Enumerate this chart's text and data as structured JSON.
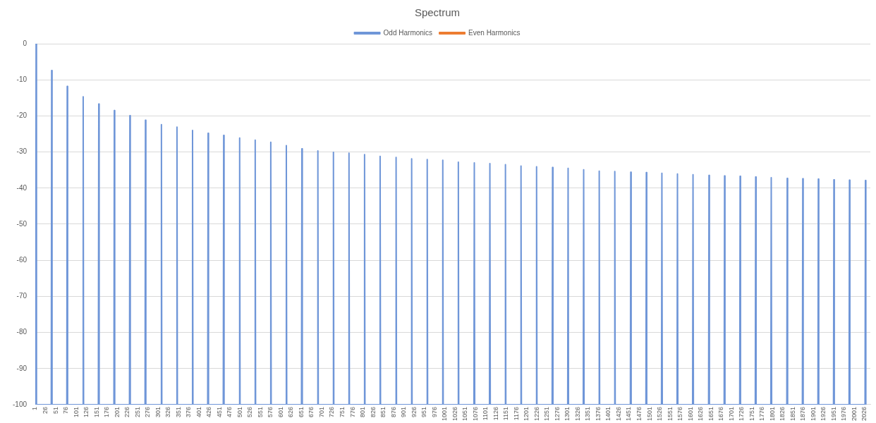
{
  "chart_data": {
    "type": "line",
    "title": "Spectrum",
    "x": [
      2,
      3,
      4,
      40,
      41,
      42,
      78,
      79,
      80,
      117,
      118,
      119,
      155,
      156,
      157,
      193,
      194,
      195,
      231,
      232,
      233,
      269,
      270,
      271,
      308,
      309,
      310,
      346,
      347,
      348,
      384,
      385,
      386,
      422,
      423,
      424,
      460,
      461,
      462,
      499,
      500,
      501,
      537,
      538,
      539,
      575,
      576,
      577,
      613,
      614,
      615,
      651,
      652,
      653,
      690,
      691,
      692,
      728,
      729,
      730,
      766,
      767,
      768,
      804,
      805,
      806,
      842,
      843,
      844,
      881,
      882,
      883,
      919,
      920,
      921,
      957,
      958,
      959,
      995,
      996,
      997,
      1033,
      1034,
      1035,
      1072,
      1073,
      1074,
      1110,
      1111,
      1112,
      1148,
      1149,
      1150,
      1186,
      1187,
      1188,
      1224,
      1225,
      1226,
      1263,
      1264,
      1265,
      1301,
      1302,
      1303,
      1339,
      1340,
      1341,
      1377,
      1378,
      1379,
      1415,
      1416,
      1417,
      1454,
      1455,
      1456,
      1492,
      1493,
      1494,
      1530,
      1531,
      1532,
      1568,
      1569,
      1570,
      1606,
      1607,
      1608,
      1645,
      1646,
      1647,
      1683,
      1684,
      1685,
      1721,
      1722,
      1723,
      1759,
      1760,
      1761,
      1797,
      1798,
      1799,
      1836,
      1837,
      1838,
      1874,
      1875,
      1876,
      1912,
      1913,
      1914,
      1950,
      1951,
      1952,
      1988,
      1989,
      1990,
      2027,
      2028,
      2029
    ],
    "series": [
      {
        "name": "Odd Harmonics",
        "color": "#6f96d8",
        "values": [
          -100,
          0,
          -100,
          -100,
          -7.4,
          -100,
          -100,
          -11.8,
          -100,
          -100,
          -14.7,
          -100,
          -100,
          -16.7,
          -100,
          -100,
          -18.5,
          -100,
          -100,
          -19.9,
          -100,
          -100,
          -21.2,
          -100,
          -100,
          -22.4,
          -100,
          -100,
          -23.1,
          -100,
          -100,
          -24,
          -100,
          -100,
          -24.8,
          -100,
          -100,
          -25.4,
          -100,
          -100,
          -26.1,
          -100,
          -100,
          -26.7,
          -100,
          -100,
          -27.3,
          -100,
          -100,
          -28.2,
          -100,
          -100,
          -29.1,
          -100,
          -100,
          -29.7,
          -100,
          -100,
          -30.1,
          -100,
          -100,
          -30.3,
          -100,
          -100,
          -30.7,
          -100,
          -100,
          -31.2,
          -100,
          -100,
          -31.5,
          -100,
          -100,
          -31.9,
          -100,
          -100,
          -32.1,
          -100,
          -100,
          -32.3,
          -100,
          -100,
          -32.8,
          -100,
          -100,
          -33,
          -100,
          -100,
          -33.2,
          -100,
          -100,
          -33.5,
          -100,
          -100,
          -33.9,
          -100,
          -100,
          -34.1,
          -100,
          -100,
          -34.3,
          -100,
          -100,
          -34.5,
          -100,
          -100,
          -34.9,
          -100,
          -100,
          -35.3,
          -100,
          -100,
          -35.4,
          -100,
          -100,
          -35.6,
          -100,
          -100,
          -35.7,
          -100,
          -100,
          -35.9,
          -100,
          -100,
          -36.1,
          -100,
          -100,
          -36.3,
          -100,
          -100,
          -36.5,
          -100,
          -100,
          -36.6,
          -100,
          -100,
          -36.7,
          -100,
          -100,
          -36.9,
          -100,
          -100,
          -37.1,
          -100,
          -100,
          -37.3,
          -100,
          -100,
          -37.4,
          -100,
          -100,
          -37.5,
          -100,
          -100,
          -37.7,
          -100,
          -100,
          -37.8,
          -100,
          -100,
          -37.9,
          -100
        ]
      },
      {
        "name": "Even Harmonics",
        "color": "#ed7d31",
        "values": [
          null,
          null,
          null,
          null,
          null,
          null,
          null,
          null,
          null,
          null,
          null,
          null,
          null,
          null,
          null,
          null,
          null,
          null,
          null,
          null,
          null,
          null,
          null,
          null,
          null,
          null,
          null,
          null,
          null,
          null,
          null,
          null,
          null,
          null,
          null,
          null,
          null,
          null,
          null,
          null,
          null,
          null,
          null,
          null,
          null,
          null,
          null,
          null,
          null,
          null,
          null,
          null,
          null,
          null,
          null,
          null,
          null,
          null,
          null,
          null,
          null,
          null,
          null,
          null,
          null,
          null,
          null,
          null,
          null,
          null,
          null,
          null,
          null,
          null,
          null,
          null,
          null,
          null,
          null,
          null,
          null,
          null,
          null,
          null,
          null,
          null,
          null,
          null,
          null,
          null,
          null,
          null,
          null,
          null,
          null,
          null,
          null,
          null,
          null,
          null,
          null,
          null,
          null,
          null,
          null,
          null,
          null,
          null,
          null,
          null,
          null,
          null,
          null,
          null,
          null,
          null,
          null,
          null,
          null,
          null,
          null,
          null,
          null,
          null,
          null,
          null,
          null,
          null,
          null,
          null,
          null,
          null,
          null,
          null,
          null,
          null,
          null,
          null,
          null,
          null,
          null,
          null,
          null,
          null,
          null,
          null,
          null,
          null,
          null,
          null,
          null,
          null,
          null,
          null,
          null,
          null,
          null,
          null,
          null,
          null,
          null,
          null
        ]
      }
    ],
    "xlim": [
      1,
      2040
    ],
    "xticks": [
      1,
      26,
      51,
      76,
      101,
      126,
      151,
      176,
      201,
      226,
      251,
      276,
      301,
      326,
      351,
      376,
      401,
      426,
      451,
      476,
      501,
      526,
      551,
      576,
      601,
      626,
      651,
      676,
      701,
      726,
      751,
      776,
      801,
      826,
      851,
      876,
      901,
      926,
      951,
      976,
      1001,
      1026,
      1051,
      1076,
      1101,
      1126,
      1151,
      1176,
      1201,
      1226,
      1251,
      1276,
      1301,
      1326,
      1351,
      1376,
      1401,
      1426,
      1451,
      1476,
      1501,
      1526,
      1551,
      1576,
      1601,
      1626,
      1651,
      1676,
      1701,
      1726,
      1751,
      1776,
      1801,
      1826,
      1851,
      1876,
      1901,
      1926,
      1951,
      1976,
      2001,
      2026
    ],
    "ylim": [
      -100,
      0
    ],
    "yticks": [
      0,
      -10,
      -20,
      -30,
      -40,
      -50,
      -60,
      -70,
      -80,
      -90,
      -100
    ],
    "grid": "y",
    "legend": "top"
  }
}
